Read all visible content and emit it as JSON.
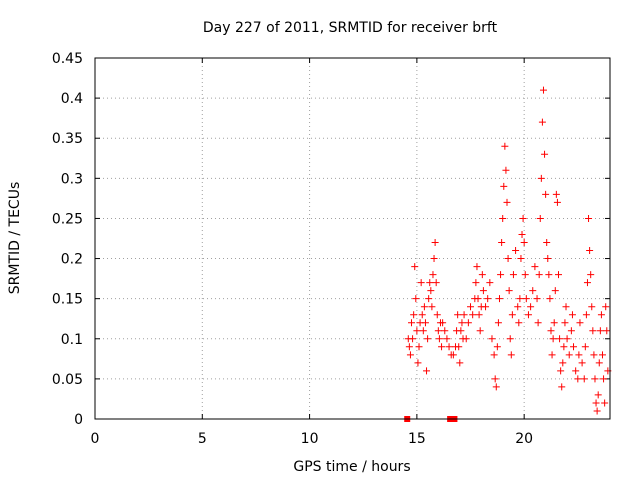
{
  "chart_data": {
    "type": "scatter",
    "title": "Day 227 of 2011, SRMTID for receiver brft",
    "xlabel": "GPS time / hours",
    "ylabel": "SRMTID / TECUs",
    "xlim": [
      0,
      24
    ],
    "ylim": [
      0,
      0.45
    ],
    "x_ticks": [
      0,
      5,
      10,
      15,
      20
    ],
    "x_tick_labels": [
      "0",
      "5",
      "10",
      "15",
      "20"
    ],
    "y_ticks": [
      0,
      0.05,
      0.1,
      0.15,
      0.2,
      0.25,
      0.3,
      0.35,
      0.4,
      0.45
    ],
    "y_tick_labels": [
      "0",
      "0.05",
      "0.1",
      "0.15",
      "0.2",
      "0.25",
      "0.3",
      "0.35",
      "0.4",
      "0.45"
    ],
    "grid": true,
    "marker": "plus",
    "color": "#ff0000",
    "zero_markers": {
      "marker": "square",
      "color": "#ff0000",
      "x": [
        14.55,
        16.55,
        16.6,
        16.65,
        16.7,
        16.75
      ],
      "y": [
        0,
        0,
        0,
        0,
        0,
        0
      ]
    },
    "series": [
      {
        "name": "SRMTID",
        "points": [
          [
            14.6,
            0.1
          ],
          [
            14.65,
            0.09
          ],
          [
            14.7,
            0.08
          ],
          [
            14.75,
            0.12
          ],
          [
            14.8,
            0.1
          ],
          [
            14.85,
            0.13
          ],
          [
            14.9,
            0.19
          ],
          [
            14.95,
            0.15
          ],
          [
            15.0,
            0.11
          ],
          [
            15.05,
            0.07
          ],
          [
            15.1,
            0.09
          ],
          [
            15.15,
            0.12
          ],
          [
            15.2,
            0.17
          ],
          [
            15.25,
            0.13
          ],
          [
            15.3,
            0.11
          ],
          [
            15.35,
            0.14
          ],
          [
            15.4,
            0.12
          ],
          [
            15.45,
            0.06
          ],
          [
            15.5,
            0.1
          ],
          [
            15.55,
            0.15
          ],
          [
            15.6,
            0.17
          ],
          [
            15.65,
            0.16
          ],
          [
            15.7,
            0.14
          ],
          [
            15.75,
            0.18
          ],
          [
            15.8,
            0.2
          ],
          [
            15.85,
            0.22
          ],
          [
            15.9,
            0.17
          ],
          [
            15.95,
            0.13
          ],
          [
            16.0,
            0.11
          ],
          [
            16.05,
            0.1
          ],
          [
            16.1,
            0.12
          ],
          [
            16.15,
            0.09
          ],
          [
            16.2,
            0.12
          ],
          [
            16.3,
            0.11
          ],
          [
            16.4,
            0.1
          ],
          [
            16.5,
            0.09
          ],
          [
            16.6,
            0.08
          ],
          [
            16.7,
            0.08
          ],
          [
            16.8,
            0.09
          ],
          [
            16.85,
            0.11
          ],
          [
            16.9,
            0.13
          ],
          [
            16.95,
            0.09
          ],
          [
            17.0,
            0.07
          ],
          [
            17.05,
            0.11
          ],
          [
            17.1,
            0.12
          ],
          [
            17.15,
            0.1
          ],
          [
            17.2,
            0.13
          ],
          [
            17.3,
            0.1
          ],
          [
            17.4,
            0.12
          ],
          [
            17.5,
            0.14
          ],
          [
            17.6,
            0.13
          ],
          [
            17.7,
            0.15
          ],
          [
            17.75,
            0.17
          ],
          [
            17.8,
            0.19
          ],
          [
            17.85,
            0.15
          ],
          [
            17.9,
            0.13
          ],
          [
            17.95,
            0.11
          ],
          [
            18.0,
            0.14
          ],
          [
            18.05,
            0.18
          ],
          [
            18.1,
            0.16
          ],
          [
            18.2,
            0.14
          ],
          [
            18.3,
            0.15
          ],
          [
            18.4,
            0.17
          ],
          [
            18.5,
            0.1
          ],
          [
            18.6,
            0.08
          ],
          [
            18.65,
            0.05
          ],
          [
            18.7,
            0.04
          ],
          [
            18.75,
            0.09
          ],
          [
            18.8,
            0.12
          ],
          [
            18.85,
            0.15
          ],
          [
            18.9,
            0.18
          ],
          [
            18.95,
            0.22
          ],
          [
            19.0,
            0.25
          ],
          [
            19.05,
            0.29
          ],
          [
            19.1,
            0.34
          ],
          [
            19.15,
            0.31
          ],
          [
            19.2,
            0.27
          ],
          [
            19.25,
            0.2
          ],
          [
            19.3,
            0.16
          ],
          [
            19.35,
            0.1
          ],
          [
            19.4,
            0.08
          ],
          [
            19.45,
            0.13
          ],
          [
            19.5,
            0.18
          ],
          [
            19.6,
            0.21
          ],
          [
            19.7,
            0.14
          ],
          [
            19.75,
            0.12
          ],
          [
            19.8,
            0.15
          ],
          [
            19.85,
            0.2
          ],
          [
            19.9,
            0.23
          ],
          [
            19.95,
            0.25
          ],
          [
            20.0,
            0.22
          ],
          [
            20.05,
            0.18
          ],
          [
            20.1,
            0.15
          ],
          [
            20.2,
            0.13
          ],
          [
            20.3,
            0.14
          ],
          [
            20.4,
            0.16
          ],
          [
            20.5,
            0.19
          ],
          [
            20.6,
            0.15
          ],
          [
            20.65,
            0.12
          ],
          [
            20.7,
            0.18
          ],
          [
            20.75,
            0.25
          ],
          [
            20.8,
            0.3
          ],
          [
            20.85,
            0.37
          ],
          [
            20.9,
            0.41
          ],
          [
            20.95,
            0.33
          ],
          [
            21.0,
            0.28
          ],
          [
            21.05,
            0.22
          ],
          [
            21.1,
            0.2
          ],
          [
            21.15,
            0.18
          ],
          [
            21.2,
            0.15
          ],
          [
            21.25,
            0.11
          ],
          [
            21.3,
            0.08
          ],
          [
            21.35,
            0.1
          ],
          [
            21.4,
            0.12
          ],
          [
            21.45,
            0.16
          ],
          [
            21.5,
            0.28
          ],
          [
            21.55,
            0.27
          ],
          [
            21.6,
            0.18
          ],
          [
            21.65,
            0.1
          ],
          [
            21.7,
            0.06
          ],
          [
            21.75,
            0.04
          ],
          [
            21.8,
            0.07
          ],
          [
            21.85,
            0.09
          ],
          [
            21.9,
            0.12
          ],
          [
            21.95,
            0.14
          ],
          [
            22.0,
            0.1
          ],
          [
            22.1,
            0.08
          ],
          [
            22.2,
            0.11
          ],
          [
            22.25,
            0.13
          ],
          [
            22.3,
            0.09
          ],
          [
            22.4,
            0.06
          ],
          [
            22.5,
            0.05
          ],
          [
            22.55,
            0.08
          ],
          [
            22.6,
            0.12
          ],
          [
            22.7,
            0.07
          ],
          [
            22.8,
            0.05
          ],
          [
            22.85,
            0.09
          ],
          [
            22.9,
            0.13
          ],
          [
            22.95,
            0.17
          ],
          [
            23.0,
            0.25
          ],
          [
            23.05,
            0.21
          ],
          [
            23.1,
            0.18
          ],
          [
            23.15,
            0.14
          ],
          [
            23.2,
            0.11
          ],
          [
            23.25,
            0.08
          ],
          [
            23.3,
            0.05
          ],
          [
            23.35,
            0.02
          ],
          [
            23.4,
            0.01
          ],
          [
            23.45,
            0.03
          ],
          [
            23.5,
            0.07
          ],
          [
            23.55,
            0.11
          ],
          [
            23.6,
            0.13
          ],
          [
            23.65,
            0.08
          ],
          [
            23.7,
            0.05
          ],
          [
            23.75,
            0.02
          ],
          [
            23.8,
            0.14
          ],
          [
            23.85,
            0.11
          ],
          [
            23.9,
            0.06
          ]
        ]
      }
    ]
  }
}
